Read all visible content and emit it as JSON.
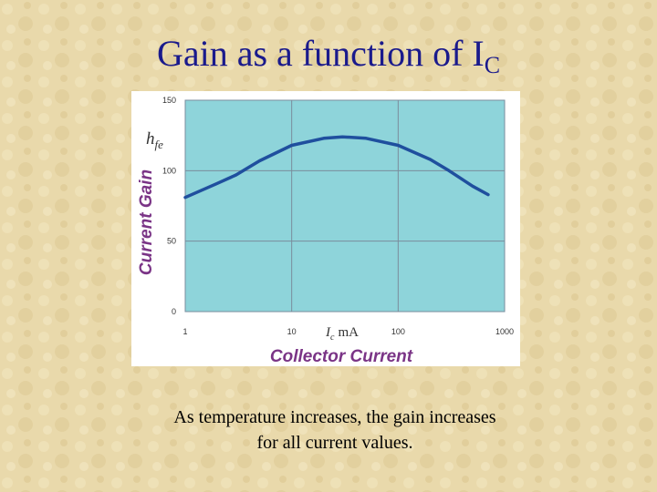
{
  "title": {
    "main": "Gain as a function of I",
    "subscript": "C"
  },
  "chart_data": {
    "type": "line",
    "x_label": {
      "symbol": "I",
      "subscript": "c",
      "unit": "mA"
    },
    "x_title": "Collector Current",
    "y_label": {
      "symbol": "h",
      "subscript": "fe"
    },
    "y_title": "Current Gain",
    "x": [
      1,
      2,
      3,
      5,
      10,
      20,
      30,
      50,
      100,
      200,
      300,
      500,
      700
    ],
    "values": [
      81,
      91,
      97,
      107,
      118,
      123,
      124,
      123,
      118,
      108,
      100,
      89,
      83
    ],
    "color": "#1f4f9e",
    "xscale": "log",
    "xlim": [
      1,
      1000
    ],
    "xticks": [
      1,
      10,
      100,
      1000
    ],
    "ylim": [
      0,
      150
    ],
    "yticks": [
      0,
      50,
      100,
      150
    ],
    "grid": true
  },
  "caption": [
    "As temperature increases, the gain increases",
    "for all current values."
  ]
}
